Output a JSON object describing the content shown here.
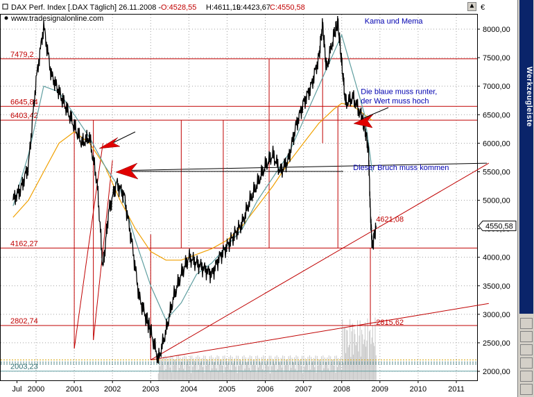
{
  "header": {
    "title_main": "DAX Perf. Index [.DAX  Täglich] 26.11.2008 - ",
    "open": "O:4528,55",
    "high": "H:4611,19",
    "low": "L:4423,67",
    "close": "C:4550,58",
    "website": "www.tradesignalonline.com",
    "currency": "€"
  },
  "sidebar": {
    "label": "Werkzeugleiste"
  },
  "chart_data": {
    "type": "line",
    "x_range": [
      1999.4,
      2012.0
    ],
    "ylim": [
      1900,
      8450
    ],
    "y_ticks": [
      2000,
      2500,
      3000,
      3500,
      4000,
      4500,
      5000,
      5500,
      6000,
      6500,
      7000,
      7500,
      8000
    ],
    "y_tick_labels": [
      "2000,00",
      "2500,00",
      "3000,00",
      "3500,00",
      "4000,00",
      "4500,00",
      "5000,00",
      "5500,00",
      "6000,00",
      "6500,00",
      "7000,00",
      "7500,00",
      "8000,00"
    ],
    "x_ticks": [
      1999.5,
      2000,
      2001,
      2002,
      2003,
      2004,
      2005,
      2006,
      2007,
      2008,
      2009,
      2010,
      2011
    ],
    "x_tick_labels": [
      "Jul",
      "2000",
      "2001",
      "2002",
      "2003",
      "2004",
      "2005",
      "2006",
      "2007",
      "2008",
      "2009",
      "2010",
      "2011"
    ],
    "price_label": "4550,58",
    "last_price": 4550.58,
    "price_series": {
      "x": [
        1999.4,
        1999.6,
        1999.8,
        2000.0,
        2000.2,
        2000.4,
        2000.6,
        2000.8,
        2001.0,
        2001.2,
        2001.4,
        2001.6,
        2001.75,
        2001.9,
        2002.1,
        2002.3,
        2002.5,
        2002.7,
        2002.9,
        2003.0,
        2003.2,
        2003.4,
        2003.6,
        2003.8,
        2004.0,
        2004.2,
        2004.4,
        2004.6,
        2004.8,
        2005.0,
        2005.2,
        2005.4,
        2005.6,
        2005.8,
        2006.0,
        2006.2,
        2006.4,
        2006.6,
        2006.8,
        2007.0,
        2007.2,
        2007.4,
        2007.5,
        2007.6,
        2007.8,
        2007.9,
        2008.0,
        2008.1,
        2008.3,
        2008.5,
        2008.6,
        2008.7,
        2008.75,
        2008.8,
        2008.9
      ],
      "y": [
        5000,
        5200,
        5600,
        7100,
        8050,
        7200,
        6900,
        6600,
        6300,
        6000,
        6100,
        5300,
        3800,
        4800,
        5300,
        5100,
        4300,
        3300,
        2900,
        2700,
        2200,
        2700,
        3300,
        3700,
        4000,
        3900,
        3800,
        3700,
        4000,
        4200,
        4400,
        4600,
        5000,
        5300,
        5600,
        5800,
        5500,
        5700,
        6300,
        6700,
        7000,
        7500,
        8100,
        7300,
        7900,
        8100,
        7400,
        6700,
        6800,
        6500,
        6300,
        5900,
        4800,
        4200,
        4550
      ]
    },
    "series": [
      {
        "name": "",
        "color": "#f0a000",
        "x": [
          1999.4,
          1999.8,
          2000.2,
          2000.6,
          2001.0,
          2001.4,
          2001.8,
          2002.2,
          2002.6,
          2003.0,
          2003.4,
          2003.8,
          2004.2,
          2004.6,
          2005.0,
          2005.4,
          2005.8,
          2006.2,
          2006.6,
          2007.0,
          2007.4,
          2007.8,
          2008.0,
          2008.3,
          2008.6,
          2008.8
        ],
        "y": [
          4700,
          5000,
          5500,
          6000,
          6200,
          6000,
          5600,
          5000,
          4500,
          4100,
          3950,
          3950,
          4050,
          4150,
          4300,
          4550,
          4900,
          5250,
          5650,
          6000,
          6350,
          6600,
          6700,
          6650,
          6500,
          6400
        ]
      },
      {
        "name": "",
        "color": "#5f9ea0",
        "x": [
          1999.4,
          1999.8,
          2000.2,
          2000.6,
          2001.0,
          2001.4,
          2001.8,
          2002.2,
          2002.6,
          2003.0,
          2003.4,
          2003.8,
          2004.2,
          2004.6,
          2005.0,
          2005.4,
          2005.8,
          2006.2,
          2006.6,
          2007.0,
          2007.4,
          2007.8,
          2008.0,
          2008.3,
          2008.6,
          2008.8
        ],
        "y": [
          4900,
          5800,
          7000,
          6900,
          6500,
          6100,
          5600,
          5200,
          4300,
          3500,
          2900,
          3200,
          3700,
          3900,
          4200,
          4500,
          5000,
          5400,
          5800,
          6400,
          7000,
          7600,
          7900,
          7200,
          6500,
          5500
        ]
      }
    ],
    "horizontal_levels": [
      {
        "value": 7479.2,
        "label": "7479,2"
      },
      {
        "value": 6645.84,
        "label": "6645,84"
      },
      {
        "value": 6403.42,
        "label": "6403,42"
      },
      {
        "value": 4162.27,
        "label": "4162,27"
      },
      {
        "value": 2802.74,
        "label": "2802,74"
      },
      {
        "value": 2003.23,
        "label": "2003,23"
      }
    ],
    "annotations": [
      {
        "text": "Kama und Mema",
        "x": 2008.6,
        "y": 8100,
        "color": "#0000b0"
      },
      {
        "text": "Die blaue muss runter,",
        "x": 2008.5,
        "y": 6860,
        "color": "#0000b0"
      },
      {
        "text": "der Wert muss hoch",
        "x": 2008.5,
        "y": 6700,
        "color": "#0000b0"
      },
      {
        "text": "Dieser Bruch muss kommen",
        "x": 2008.3,
        "y": 5530,
        "color": "#0000b0"
      },
      {
        "text": "4621,08",
        "x": 2008.9,
        "y": 4621,
        "color": "#c00000"
      },
      {
        "text": "2815,62",
        "x": 2008.9,
        "y": 2815,
        "color": "#c00000"
      }
    ]
  }
}
